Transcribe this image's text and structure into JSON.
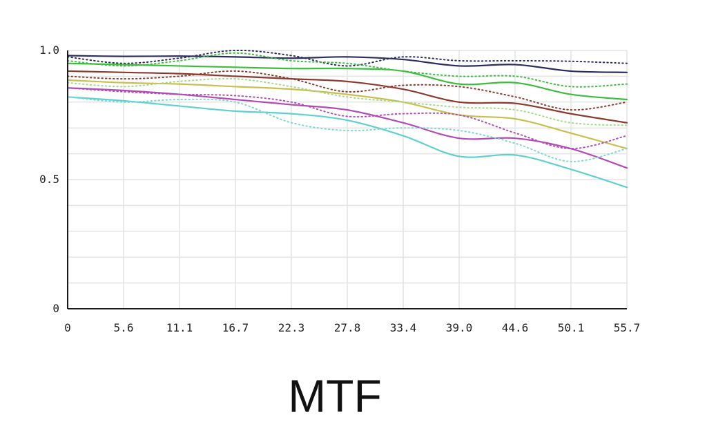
{
  "caption": "MTF",
  "chart_data": {
    "type": "line",
    "title": "MTF",
    "xlabel": "",
    "ylabel": "",
    "xlim": [
      0,
      55.7
    ],
    "ylim": [
      0,
      1.0
    ],
    "x_ticks": [
      "0",
      "5.6",
      "11.1",
      "16.7",
      "22.3",
      "27.8",
      "33.4",
      "39.0",
      "44.6",
      "50.1",
      "55.7"
    ],
    "y_ticks": [
      "0",
      "0.5",
      "1.0"
    ],
    "grid": true,
    "legend": "none",
    "x": [
      0,
      5.6,
      11.1,
      16.7,
      22.3,
      27.8,
      33.4,
      39.0,
      44.6,
      50.1,
      55.7
    ],
    "series": [
      {
        "color": "#2b2d5c",
        "style": "solid",
        "values": [
          0.98,
          0.977,
          0.978,
          0.975,
          0.97,
          0.975,
          0.965,
          0.94,
          0.945,
          0.92,
          0.915
        ]
      },
      {
        "color": "#2b2d5c",
        "style": "dotted",
        "values": [
          0.975,
          0.95,
          0.97,
          1.0,
          0.98,
          0.94,
          0.975,
          0.96,
          0.96,
          0.958,
          0.95
        ]
      },
      {
        "color": "#3dbd3d",
        "style": "solid",
        "values": [
          0.95,
          0.945,
          0.94,
          0.935,
          0.93,
          0.93,
          0.92,
          0.87,
          0.875,
          0.83,
          0.81
        ]
      },
      {
        "color": "#3dbd3d",
        "style": "dotted",
        "values": [
          0.96,
          0.94,
          0.96,
          0.99,
          0.96,
          0.95,
          0.92,
          0.9,
          0.9,
          0.86,
          0.87
        ]
      },
      {
        "color": "#8c3a2e",
        "style": "solid",
        "values": [
          0.92,
          0.915,
          0.91,
          0.9,
          0.89,
          0.88,
          0.85,
          0.8,
          0.795,
          0.755,
          0.72
        ]
      },
      {
        "color": "#8c3a2e",
        "style": "dotted",
        "values": [
          0.9,
          0.89,
          0.9,
          0.92,
          0.89,
          0.84,
          0.865,
          0.86,
          0.82,
          0.77,
          0.8
        ]
      },
      {
        "color": "#c9bf4e",
        "style": "solid",
        "values": [
          0.885,
          0.875,
          0.87,
          0.86,
          0.85,
          0.83,
          0.8,
          0.75,
          0.735,
          0.68,
          0.62
        ]
      },
      {
        "color": "#a8d88a",
        "style": "dotted",
        "values": [
          0.875,
          0.86,
          0.88,
          0.89,
          0.86,
          0.82,
          0.8,
          0.78,
          0.77,
          0.72,
          0.71
        ]
      },
      {
        "color": "#b04cb4",
        "style": "solid",
        "values": [
          0.855,
          0.845,
          0.83,
          0.81,
          0.79,
          0.77,
          0.72,
          0.66,
          0.66,
          0.62,
          0.545
        ]
      },
      {
        "color": "#b04cb4",
        "style": "dotted",
        "values": [
          0.855,
          0.84,
          0.83,
          0.825,
          0.8,
          0.745,
          0.755,
          0.75,
          0.68,
          0.62,
          0.67
        ]
      },
      {
        "color": "#5fd0d0",
        "style": "solid",
        "values": [
          0.82,
          0.805,
          0.785,
          0.765,
          0.755,
          0.73,
          0.67,
          0.59,
          0.595,
          0.54,
          0.47
        ]
      },
      {
        "color": "#7fd8d0",
        "style": "dotted",
        "values": [
          0.82,
          0.8,
          0.81,
          0.8,
          0.72,
          0.69,
          0.7,
          0.69,
          0.64,
          0.57,
          0.62
        ]
      }
    ]
  }
}
